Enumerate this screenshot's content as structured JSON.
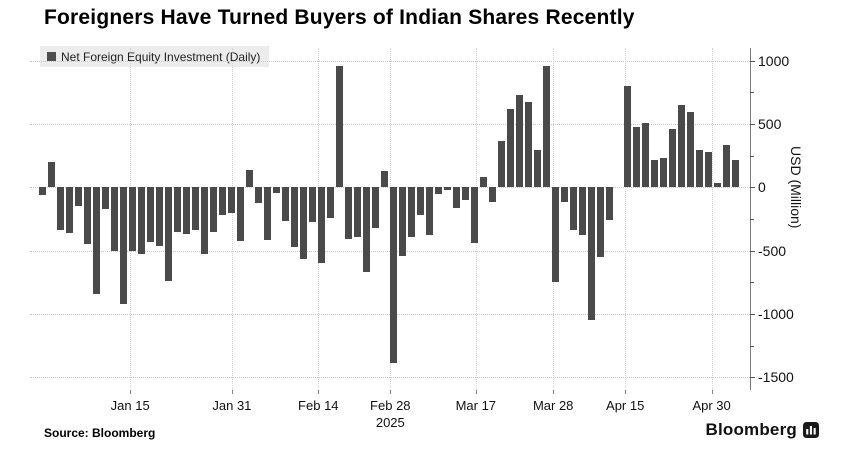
{
  "title": "Foreigners Have Turned Buyers of Indian Shares Recently",
  "legend": {
    "label": "Net Foreign Equity Investment (Daily)",
    "swatch_color": "#4d4d4d"
  },
  "source": "Source: Bloomberg",
  "branding": {
    "wordmark": "Bloomberg",
    "logo_icon": "bloomberg-mark"
  },
  "chart_data": {
    "type": "bar",
    "title": "Foreigners Have Turned Buyers of Indian Shares Recently",
    "series_name": "Net Foreign Equity Investment (Daily)",
    "ylabel": "USD (Million)",
    "ylim": [
      -1600,
      1100
    ],
    "y_ticks_major": [
      1000,
      500,
      0,
      -500,
      -1000,
      -1500
    ],
    "y_ticks_minor": [
      750,
      250,
      -250,
      -750,
      -1250
    ],
    "grid": "dotted",
    "bar_color": "#4a4a4a",
    "legend_position": "top-left",
    "year_label": "2025",
    "year_label_at_index": 38.7,
    "x_ticks": [
      {
        "label": "Jan 15",
        "index": 9.8
      },
      {
        "label": "Jan 31",
        "index": 21.1
      },
      {
        "label": "Feb 14",
        "index": 30.7
      },
      {
        "label": "Feb 28",
        "index": 38.7
      },
      {
        "label": "Mar 17",
        "index": 48.2
      },
      {
        "label": "Mar 28",
        "index": 56.8
      },
      {
        "label": "Apr 15",
        "index": 64.8
      },
      {
        "label": "Apr 30",
        "index": 74.4
      }
    ],
    "values": [
      -60,
      200,
      -340,
      -360,
      -145,
      -445,
      -840,
      -170,
      -500,
      -920,
      -505,
      -525,
      -435,
      -460,
      -740,
      -355,
      -365,
      -340,
      -525,
      -355,
      -218,
      -200,
      -420,
      140,
      -120,
      -412,
      -45,
      -264,
      -473,
      -565,
      -272,
      -594,
      -242,
      955,
      -405,
      -392,
      -665,
      -325,
      130,
      -1385,
      -540,
      -392,
      -218,
      -375,
      -55,
      -25,
      -164,
      -102,
      -441,
      78,
      -119,
      368,
      615,
      728,
      674,
      293,
      955,
      -744,
      -119,
      -339,
      -373,
      -1051,
      -550,
      -260,
      0,
      803,
      475,
      508,
      212,
      234,
      459,
      647,
      594,
      293,
      280,
      37,
      335,
      215
    ]
  }
}
